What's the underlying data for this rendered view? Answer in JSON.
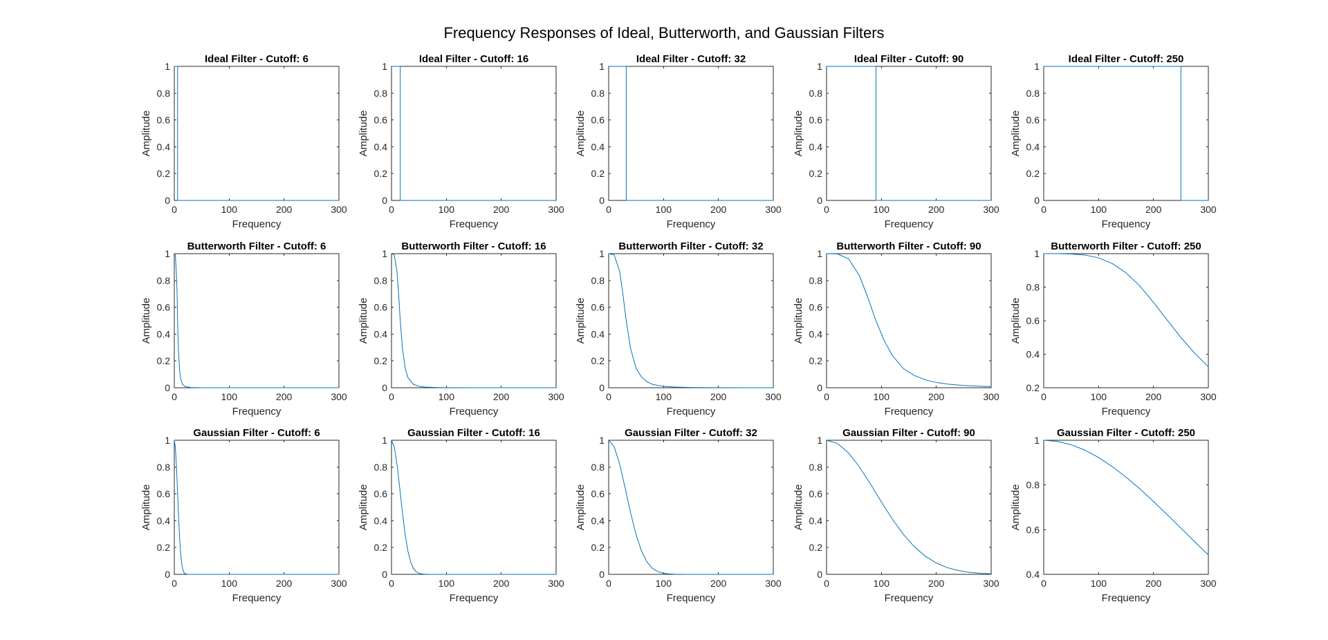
{
  "figure": {
    "title": "Frequency Responses of Ideal, Butterworth, and Gaussian Filters"
  },
  "chart_data": [
    {
      "type": "line",
      "title": "Ideal Filter - Cutoff: 6",
      "xlabel": "Frequency",
      "ylabel": "Amplitude",
      "xlim": [
        0,
        300
      ],
      "ylim": [
        0,
        1
      ],
      "xticks": [
        0,
        100,
        200,
        300
      ],
      "yticks": [
        0,
        0.2,
        0.4,
        0.6,
        0.8,
        1
      ],
      "ytick_labels": [
        "0",
        "0.2",
        "0.4",
        "0.6",
        "0.8",
        "1"
      ],
      "color": "#0072bd",
      "x": [
        0,
        6,
        6,
        300
      ],
      "y": [
        1,
        1,
        0,
        0
      ]
    },
    {
      "type": "line",
      "title": "Ideal Filter - Cutoff: 16",
      "xlabel": "Frequency",
      "ylabel": "Amplitude",
      "xlim": [
        0,
        300
      ],
      "ylim": [
        0,
        1
      ],
      "xticks": [
        0,
        100,
        200,
        300
      ],
      "yticks": [
        0,
        0.2,
        0.4,
        0.6,
        0.8,
        1
      ],
      "ytick_labels": [
        "0",
        "0.2",
        "0.4",
        "0.6",
        "0.8",
        "1"
      ],
      "color": "#0072bd",
      "x": [
        0,
        16,
        16,
        300
      ],
      "y": [
        1,
        1,
        0,
        0
      ]
    },
    {
      "type": "line",
      "title": "Ideal Filter - Cutoff: 32",
      "xlabel": "Frequency",
      "ylabel": "Amplitude",
      "xlim": [
        0,
        300
      ],
      "ylim": [
        0,
        1
      ],
      "xticks": [
        0,
        100,
        200,
        300
      ],
      "yticks": [
        0,
        0.2,
        0.4,
        0.6,
        0.8,
        1
      ],
      "ytick_labels": [
        "0",
        "0.2",
        "0.4",
        "0.6",
        "0.8",
        "1"
      ],
      "color": "#0072bd",
      "x": [
        0,
        32,
        32,
        300
      ],
      "y": [
        1,
        1,
        0,
        0
      ]
    },
    {
      "type": "line",
      "title": "Ideal Filter - Cutoff: 90",
      "xlabel": "Frequency",
      "ylabel": "Amplitude",
      "xlim": [
        0,
        300
      ],
      "ylim": [
        0,
        1
      ],
      "xticks": [
        0,
        100,
        200,
        300
      ],
      "yticks": [
        0,
        0.2,
        0.4,
        0.6,
        0.8,
        1
      ],
      "ytick_labels": [
        "0",
        "0.2",
        "0.4",
        "0.6",
        "0.8",
        "1"
      ],
      "color": "#0072bd",
      "x": [
        0,
        90,
        90,
        300
      ],
      "y": [
        1,
        1,
        0,
        0
      ]
    },
    {
      "type": "line",
      "title": "Ideal Filter - Cutoff: 250",
      "xlabel": "Frequency",
      "ylabel": "Amplitude",
      "xlim": [
        0,
        300
      ],
      "ylim": [
        0,
        1
      ],
      "xticks": [
        0,
        100,
        200,
        300
      ],
      "yticks": [
        0,
        0.2,
        0.4,
        0.6,
        0.8,
        1
      ],
      "ytick_labels": [
        "0",
        "0.2",
        "0.4",
        "0.6",
        "0.8",
        "1"
      ],
      "color": "#0072bd",
      "x": [
        0,
        250,
        250,
        300
      ],
      "y": [
        1,
        1,
        0,
        0
      ]
    },
    {
      "type": "line",
      "title": "Butterworth Filter - Cutoff: 6",
      "xlabel": "Frequency",
      "ylabel": "Amplitude",
      "xlim": [
        0,
        300
      ],
      "ylim": [
        0,
        1
      ],
      "xticks": [
        0,
        100,
        200,
        300
      ],
      "yticks": [
        0,
        0.2,
        0.4,
        0.6,
        0.8,
        1
      ],
      "ytick_labels": [
        "0",
        "0.2",
        "0.4",
        "0.6",
        "0.8",
        "1"
      ],
      "color": "#0072bd",
      "x": [
        0,
        2,
        4,
        5,
        6,
        7,
        8,
        10,
        12,
        15,
        20,
        30,
        50,
        100,
        200,
        300
      ],
      "y": [
        1.0,
        0.988,
        0.835,
        0.712,
        0.5,
        0.351,
        0.241,
        0.115,
        0.059,
        0.025,
        0.008,
        0.002,
        0.0002,
        0.0,
        0.0,
        0.0
      ]
    },
    {
      "type": "line",
      "title": "Butterworth Filter - Cutoff: 16",
      "xlabel": "Frequency",
      "ylabel": "Amplitude",
      "xlim": [
        0,
        300
      ],
      "ylim": [
        0,
        1
      ],
      "xticks": [
        0,
        100,
        200,
        300
      ],
      "yticks": [
        0,
        0.2,
        0.4,
        0.6,
        0.8,
        1
      ],
      "ytick_labels": [
        "0",
        "0.2",
        "0.4",
        "0.6",
        "0.8",
        "1"
      ],
      "color": "#0072bd",
      "x": [
        0,
        5,
        10,
        13,
        16,
        20,
        25,
        30,
        40,
        50,
        60,
        80,
        100,
        150,
        200,
        300
      ],
      "y": [
        1.0,
        0.991,
        0.868,
        0.698,
        0.5,
        0.291,
        0.144,
        0.075,
        0.025,
        0.011,
        0.005,
        0.002,
        0.0007,
        0.0001,
        0.0,
        0.0
      ]
    },
    {
      "type": "line",
      "title": "Butterworth Filter - Cutoff: 32",
      "xlabel": "Frequency",
      "ylabel": "Amplitude",
      "xlim": [
        0,
        300
      ],
      "ylim": [
        0,
        1
      ],
      "xticks": [
        0,
        100,
        200,
        300
      ],
      "yticks": [
        0,
        0.2,
        0.4,
        0.6,
        0.8,
        1
      ],
      "ytick_labels": [
        "0",
        "0.2",
        "0.4",
        "0.6",
        "0.8",
        "1"
      ],
      "color": "#0072bd",
      "x": [
        0,
        10,
        20,
        25,
        32,
        40,
        50,
        60,
        70,
        80,
        100,
        120,
        150,
        200,
        250,
        300
      ],
      "y": [
        1.0,
        0.991,
        0.868,
        0.728,
        0.5,
        0.291,
        0.144,
        0.079,
        0.045,
        0.025,
        0.01,
        0.005,
        0.002,
        0.0007,
        0.0003,
        0.0001
      ]
    },
    {
      "type": "line",
      "title": "Butterworth Filter - Cutoff: 90",
      "xlabel": "Frequency",
      "ylabel": "Amplitude",
      "xlim": [
        0,
        300
      ],
      "ylim": [
        0,
        1
      ],
      "xticks": [
        0,
        100,
        200,
        300
      ],
      "yticks": [
        0,
        0.2,
        0.4,
        0.6,
        0.8,
        1
      ],
      "ytick_labels": [
        "0",
        "0.2",
        "0.4",
        "0.6",
        "0.8",
        "1"
      ],
      "color": "#0072bd",
      "x": [
        0,
        20,
        40,
        60,
        75,
        90,
        105,
        120,
        140,
        160,
        180,
        200,
        225,
        250,
        275,
        300
      ],
      "y": [
        1.0,
        0.998,
        0.962,
        0.835,
        0.675,
        0.5,
        0.352,
        0.24,
        0.143,
        0.091,
        0.059,
        0.039,
        0.025,
        0.017,
        0.012,
        0.008
      ]
    },
    {
      "type": "line",
      "title": "Butterworth Filter - Cutoff: 250",
      "xlabel": "Frequency",
      "ylabel": "Amplitude",
      "xlim": [
        0,
        300
      ],
      "ylim": [
        0.2,
        1
      ],
      "xticks": [
        0,
        100,
        200,
        300
      ],
      "yticks": [
        0.2,
        0.4,
        0.6,
        0.8,
        1
      ],
      "ytick_labels": [
        "0.2",
        "0.4",
        "0.6",
        "0.8",
        "1"
      ],
      "color": "#0072bd",
      "x": [
        0,
        25,
        50,
        75,
        100,
        125,
        150,
        175,
        200,
        225,
        250,
        275,
        300
      ],
      "y": [
        1.0,
        1.0,
        0.998,
        0.992,
        0.975,
        0.941,
        0.885,
        0.808,
        0.709,
        0.604,
        0.5,
        0.406,
        0.325
      ]
    },
    {
      "type": "line",
      "title": "Gaussian Filter - Cutoff: 6",
      "xlabel": "Frequency",
      "ylabel": "Amplitude",
      "xlim": [
        0,
        300
      ],
      "ylim": [
        0,
        1
      ],
      "xticks": [
        0,
        100,
        200,
        300
      ],
      "yticks": [
        0,
        0.2,
        0.4,
        0.6,
        0.8,
        1
      ],
      "ytick_labels": [
        "0",
        "0.2",
        "0.4",
        "0.6",
        "0.8",
        "1"
      ],
      "color": "#0072bd",
      "x": [
        0,
        2,
        4,
        6,
        8,
        10,
        12,
        14,
        16,
        18,
        20,
        25,
        30,
        300
      ],
      "y": [
        1.0,
        0.946,
        0.801,
        0.607,
        0.411,
        0.249,
        0.135,
        0.066,
        0.029,
        0.011,
        0.004,
        0.0002,
        0.0,
        0.0
      ]
    },
    {
      "type": "line",
      "title": "Gaussian Filter - Cutoff: 16",
      "xlabel": "Frequency",
      "ylabel": "Amplitude",
      "xlim": [
        0,
        300
      ],
      "ylim": [
        0,
        1
      ],
      "xticks": [
        0,
        100,
        200,
        300
      ],
      "yticks": [
        0,
        0.2,
        0.4,
        0.6,
        0.8,
        1
      ],
      "ytick_labels": [
        "0",
        "0.2",
        "0.4",
        "0.6",
        "0.8",
        "1"
      ],
      "color": "#0072bd",
      "x": [
        0,
        5,
        10,
        15,
        20,
        25,
        30,
        35,
        40,
        45,
        50,
        55,
        60,
        70,
        80,
        300
      ],
      "y": [
        1.0,
        0.952,
        0.823,
        0.645,
        0.458,
        0.295,
        0.172,
        0.091,
        0.044,
        0.019,
        0.008,
        0.003,
        0.001,
        0.0,
        0.0,
        0.0
      ]
    },
    {
      "type": "line",
      "title": "Gaussian Filter - Cutoff: 32",
      "xlabel": "Frequency",
      "ylabel": "Amplitude",
      "xlim": [
        0,
        300
      ],
      "ylim": [
        0,
        1
      ],
      "xticks": [
        0,
        100,
        200,
        300
      ],
      "yticks": [
        0,
        0.2,
        0.4,
        0.6,
        0.8,
        1
      ],
      "ytick_labels": [
        "0",
        "0.2",
        "0.4",
        "0.6",
        "0.8",
        "1"
      ],
      "color": "#0072bd",
      "x": [
        0,
        10,
        20,
        30,
        40,
        50,
        60,
        70,
        80,
        90,
        100,
        110,
        120,
        140,
        160,
        300
      ],
      "y": [
        1.0,
        0.952,
        0.823,
        0.645,
        0.458,
        0.295,
        0.172,
        0.091,
        0.044,
        0.019,
        0.008,
        0.003,
        0.001,
        0.0,
        0.0,
        0.0
      ]
    },
    {
      "type": "line",
      "title": "Gaussian Filter - Cutoff: 90",
      "xlabel": "Frequency",
      "ylabel": "Amplitude",
      "xlim": [
        0,
        300
      ],
      "ylim": [
        0,
        1
      ],
      "xticks": [
        0,
        100,
        200,
        300
      ],
      "yticks": [
        0,
        0.2,
        0.4,
        0.6,
        0.8,
        1
      ],
      "ytick_labels": [
        "0",
        "0.2",
        "0.4",
        "0.6",
        "0.8",
        "1"
      ],
      "color": "#0072bd",
      "x": [
        0,
        20,
        40,
        60,
        80,
        100,
        120,
        140,
        160,
        180,
        200,
        220,
        240,
        260,
        280,
        300
      ],
      "y": [
        1.0,
        0.976,
        0.906,
        0.801,
        0.674,
        0.54,
        0.411,
        0.298,
        0.206,
        0.135,
        0.085,
        0.05,
        0.029,
        0.015,
        0.008,
        0.004
      ]
    },
    {
      "type": "line",
      "title": "Gaussian Filter - Cutoff: 250",
      "xlabel": "Frequency",
      "ylabel": "Amplitude",
      "xlim": [
        0,
        300
      ],
      "ylim": [
        0.4,
        1
      ],
      "xticks": [
        0,
        100,
        200,
        300
      ],
      "yticks": [
        0.4,
        0.6,
        0.8,
        1
      ],
      "ytick_labels": [
        "0.4",
        "0.6",
        "0.8",
        "1"
      ],
      "color": "#0072bd",
      "x": [
        0,
        25,
        50,
        75,
        100,
        125,
        150,
        175,
        200,
        225,
        250,
        275,
        300
      ],
      "y": [
        1.0,
        0.995,
        0.98,
        0.956,
        0.923,
        0.882,
        0.835,
        0.783,
        0.726,
        0.667,
        0.607,
        0.546,
        0.487
      ]
    }
  ]
}
